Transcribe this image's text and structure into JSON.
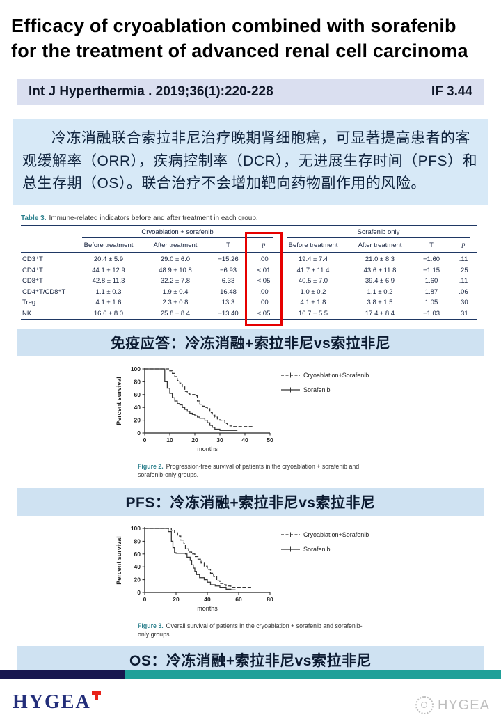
{
  "slide": {
    "title_line1": "Efficacy of cryoablation combined with sorafenib",
    "title_line2": "for the treatment of advanced renal cell carcinoma",
    "citation": "Int J Hyperthermia . 2019;36(1):220-228",
    "impact_factor": "IF 3.44",
    "summary_cn": "冷冻消融联合索拉非尼治疗晚期肾细胞癌，可显著提高患者的客观缓解率（ORR），疾病控制率（DCR），无进展生存时间（PFS）和总生存期（OS）。联合治疗不会增加靶向药物副作用的风险。"
  },
  "table": {
    "caption_label": "Table 3.",
    "caption_text": "Immune-related indicators before and after treatment in each group.",
    "group1": "Cryoablation + sorafenib",
    "group2": "Sorafenib only",
    "subheaders": [
      "Before treatment",
      "After treatment",
      "T",
      "p"
    ],
    "rows": [
      {
        "label": "CD3⁺T",
        "values": [
          "20.4 ± 5.9",
          "29.0 ± 6.0",
          "−15.26",
          ".00",
          "19.4 ± 7.4",
          "21.0 ± 8.3",
          "−1.60",
          ".11"
        ]
      },
      {
        "label": "CD4⁺T",
        "values": [
          "44.1 ± 12.9",
          "48.9 ± 10.8",
          "−6.93",
          "<.01",
          "41.7 ± 11.4",
          "43.6 ± 11.8",
          "−1.15",
          ".25"
        ]
      },
      {
        "label": "CD8⁺T",
        "values": [
          "42.8 ± 11.3",
          "32.2 ± 7.8",
          "6.33",
          "<.05",
          "40.5 ± 7.0",
          "39.4 ± 6.9",
          "1.60",
          ".11"
        ]
      },
      {
        "label": "CD4⁺T/CD8⁺T",
        "values": [
          "1.1 ± 0.3",
          "1.9 ± 0.4",
          "16.48",
          ".00",
          "1.0 ± 0.2",
          "1.1 ± 0.2",
          "1.87",
          ".06"
        ]
      },
      {
        "label": "Treg",
        "values": [
          "4.1 ± 1.6",
          "2.3 ± 0.8",
          "13.3",
          ".00",
          "4.1 ± 1.8",
          "3.8 ± 1.5",
          "1.05",
          ".30"
        ]
      },
      {
        "label": "NK",
        "values": [
          "16.6 ± 8.0",
          "25.8 ± 8.4",
          "−13.40",
          "<.05",
          "16.7 ± 5.5",
          "17.4 ± 8.4",
          "−1.03",
          ".31"
        ]
      }
    ],
    "highlight_color": "#e60000"
  },
  "section_bars": {
    "immune": "免疫应答：冷冻消融+索拉非尼vs索拉非尼",
    "pfs": "PFS：冷冻消融+索拉非尼vs索拉非尼",
    "os": "OS：冷冻消融+索拉非尼vs索拉非尼"
  },
  "chart_data": [
    {
      "type": "line",
      "subtype": "kaplan-meier-step",
      "xlabel": "months",
      "ylabel": "Percent survival",
      "xlim": [
        0,
        50
      ],
      "ylim": [
        0,
        100
      ],
      "xticks": [
        0,
        10,
        20,
        30,
        40,
        50
      ],
      "yticks": [
        0,
        20,
        40,
        60,
        80,
        100
      ],
      "grid": false,
      "legend_position": "top-right-outside",
      "series": [
        {
          "name": "Cryoablation+Sorafenib",
          "style": "dashed",
          "points": [
            [
              0,
              100
            ],
            [
              9,
              100
            ],
            [
              10,
              97
            ],
            [
              11,
              93
            ],
            [
              12,
              88
            ],
            [
              13,
              82
            ],
            [
              14,
              78
            ],
            [
              15,
              72
            ],
            [
              16,
              65
            ],
            [
              17,
              62
            ],
            [
              18,
              60
            ],
            [
              20,
              58
            ],
            [
              21,
              50
            ],
            [
              22,
              45
            ],
            [
              23,
              42
            ],
            [
              24,
              40
            ],
            [
              25,
              38
            ],
            [
              26,
              32
            ],
            [
              27,
              28
            ],
            [
              28,
              25
            ],
            [
              29,
              22
            ],
            [
              30,
              20
            ],
            [
              32,
              15
            ],
            [
              33,
              13
            ],
            [
              34,
              11
            ],
            [
              35,
              10
            ],
            [
              43,
              10
            ]
          ]
        },
        {
          "name": "Sorafenib",
          "style": "solid",
          "points": [
            [
              0,
              100
            ],
            [
              7,
              100
            ],
            [
              8,
              80
            ],
            [
              9,
              70
            ],
            [
              10,
              62
            ],
            [
              11,
              55
            ],
            [
              12,
              50
            ],
            [
              13,
              46
            ],
            [
              14,
              44
            ],
            [
              15,
              40
            ],
            [
              16,
              37
            ],
            [
              17,
              34
            ],
            [
              18,
              31
            ],
            [
              19,
              29
            ],
            [
              20,
              27
            ],
            [
              21,
              25
            ],
            [
              22,
              23
            ],
            [
              24,
              20
            ],
            [
              25,
              16
            ],
            [
              26,
              12
            ],
            [
              27,
              9
            ],
            [
              28,
              6
            ],
            [
              30,
              4
            ],
            [
              37,
              4
            ]
          ]
        }
      ],
      "caption_label": "Figure 2.",
      "caption": "Progression-free survival of patients in the cryoablation + sorafenib and sorafenib-only groups."
    },
    {
      "type": "line",
      "subtype": "kaplan-meier-step",
      "xlabel": "months",
      "ylabel": "Percent survival",
      "xlim": [
        0,
        80
      ],
      "ylim": [
        0,
        100
      ],
      "xticks": [
        0,
        20,
        40,
        60,
        80
      ],
      "yticks": [
        0,
        20,
        40,
        60,
        80,
        100
      ],
      "grid": false,
      "legend_position": "top-right-outside",
      "series": [
        {
          "name": "Cryoablation+Sorafenib",
          "style": "dashed",
          "points": [
            [
              0,
              100
            ],
            [
              15,
              100
            ],
            [
              17,
              97
            ],
            [
              19,
              93
            ],
            [
              21,
              88
            ],
            [
              23,
              82
            ],
            [
              25,
              76
            ],
            [
              26,
              68
            ],
            [
              28,
              63
            ],
            [
              30,
              60
            ],
            [
              32,
              56
            ],
            [
              34,
              52
            ],
            [
              36,
              46
            ],
            [
              38,
              41
            ],
            [
              40,
              36
            ],
            [
              42,
              30
            ],
            [
              44,
              25
            ],
            [
              46,
              18
            ],
            [
              48,
              14
            ],
            [
              50,
              12
            ],
            [
              52,
              10
            ],
            [
              55,
              8
            ],
            [
              68,
              8
            ]
          ]
        },
        {
          "name": "Sorafenib",
          "style": "solid",
          "points": [
            [
              0,
              100
            ],
            [
              14,
              100
            ],
            [
              15,
              95
            ],
            [
              17,
              80
            ],
            [
              18,
              70
            ],
            [
              19,
              62
            ],
            [
              20,
              61
            ],
            [
              26,
              60
            ],
            [
              27,
              55
            ],
            [
              29,
              50
            ],
            [
              30,
              43
            ],
            [
              31,
              38
            ],
            [
              32,
              33
            ],
            [
              33,
              28
            ],
            [
              35,
              23
            ],
            [
              38,
              20
            ],
            [
              40,
              16
            ],
            [
              42,
              12
            ],
            [
              45,
              10
            ],
            [
              48,
              8
            ],
            [
              52,
              5
            ],
            [
              55,
              4
            ],
            [
              58,
              4
            ]
          ]
        }
      ],
      "caption_label": "Figure 3.",
      "caption": "Overall survival of patients in the cryoablation + sorafenib and sorafenib-only groups."
    }
  ],
  "footer": {
    "logo_text": "HYGEA",
    "watermark_text": "HYGEA",
    "navy_color": "#17164e",
    "teal_color": "#1fa099",
    "logo_color": "#232e7a",
    "logo_cross_color": "#e8231a"
  }
}
